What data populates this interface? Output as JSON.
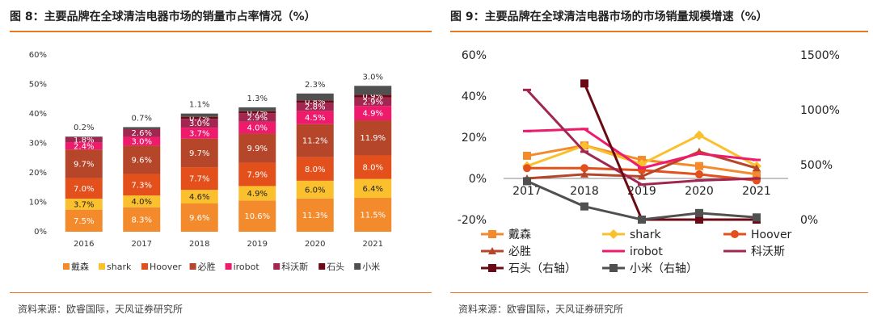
{
  "colors": {
    "accent": "#e87722",
    "戴森": "#f38a2c",
    "shark": "#fbc02d",
    "Hoover": "#e3501c",
    "必胜": "#b5462a",
    "irobot": "#ee1a6c",
    "科沃斯": "#a12650",
    "石头": "#6a0a14",
    "小米": "#505050"
  },
  "left": {
    "title": "图 8：主要品牌在全球清洁电器市场的销量市占率情况（%）",
    "source": "资料来源：欧睿国际，天风证券研究所"
  },
  "right": {
    "title": "图 9：主要品牌在全球清洁电器市场的市场销量规模增速（%）",
    "source": "资料来源：欧睿国际，天风证券研究所"
  },
  "chart_data": [
    {
      "type": "bar",
      "stacked": true,
      "categories": [
        "2016",
        "2017",
        "2018",
        "2019",
        "2020",
        "2021"
      ],
      "ylim": [
        0,
        60
      ],
      "yticks": [
        "0%",
        "10%",
        "20%",
        "30%",
        "40%",
        "50%",
        "60%"
      ],
      "legend_position": "bottom",
      "series": [
        {
          "name": "戴森",
          "values": [
            7.5,
            8.3,
            9.6,
            10.6,
            11.3,
            11.5
          ],
          "labels": [
            "7.5%",
            "8.3%",
            "9.6%",
            "10.6%",
            "11.3%",
            "11.5%"
          ]
        },
        {
          "name": "shark",
          "values": [
            3.7,
            4.0,
            4.6,
            4.9,
            6.0,
            6.4
          ],
          "labels": [
            "3.7%",
            "4.0%",
            "4.6%",
            "4.9%",
            "6.0%",
            "6.4%"
          ]
        },
        {
          "name": "Hoover",
          "values": [
            7.0,
            7.3,
            7.7,
            7.9,
            8.0,
            8.0
          ],
          "labels": [
            "7.0%",
            "7.3%",
            "7.7%",
            "7.9%",
            "8.0%",
            "8.0%"
          ]
        },
        {
          "name": "必胜",
          "values": [
            9.7,
            9.6,
            9.7,
            9.9,
            11.2,
            11.9
          ],
          "labels": [
            "9.7%",
            "9.6%",
            "9.7%",
            "9.9%",
            "11.2%",
            "11.9%"
          ]
        },
        {
          "name": "irobot",
          "values": [
            2.4,
            3.0,
            3.7,
            4.0,
            4.5,
            4.9
          ],
          "labels": [
            "2.4%",
            "3.0%",
            "3.7%",
            "4.0%",
            "4.5%",
            "4.9%"
          ]
        },
        {
          "name": "科沃斯",
          "values": [
            1.8,
            2.6,
            3.0,
            2.9,
            2.8,
            2.9
          ],
          "labels": [
            "1.8%",
            "2.6%",
            "3.0%",
            "2.9%",
            "2.8%",
            "2.9%"
          ]
        },
        {
          "name": "石头",
          "values": [
            0,
            0,
            0.7,
            0.7,
            0.8,
            0.9
          ],
          "labels": [
            "",
            "",
            "0.7%",
            "0.7%",
            "0.8%",
            "0.9%"
          ]
        },
        {
          "name": "小米",
          "values": [
            0.2,
            0.7,
            1.1,
            1.3,
            2.3,
            3.0
          ],
          "labels": [
            "0.2%",
            "0.7%",
            "1.1%",
            "1.3%",
            "2.3%",
            "3.0%"
          ]
        }
      ]
    },
    {
      "type": "line",
      "categories": [
        "2017",
        "2018",
        "2019",
        "2020",
        "2021"
      ],
      "ylim_left": [
        -20,
        60
      ],
      "ylim_right": [
        0,
        1500
      ],
      "yticks_left": [
        "-20%",
        "0%",
        "20%",
        "40%",
        "60%"
      ],
      "yticks_right": [
        "0%",
        "500%",
        "1000%",
        "1500%"
      ],
      "legend_position": "bottom",
      "series": [
        {
          "name": "戴森",
          "axis": "left",
          "marker": "square",
          "values": [
            11,
            16,
            9,
            6,
            2
          ]
        },
        {
          "name": "shark",
          "axis": "left",
          "marker": "diamond",
          "values": [
            6,
            16,
            7,
            21,
            6
          ]
        },
        {
          "name": "Hoover",
          "axis": "left",
          "marker": "circle",
          "values": [
            5,
            5,
            4,
            2,
            -1
          ]
        },
        {
          "name": "必胜",
          "axis": "left",
          "marker": "triangle",
          "values": [
            0,
            2,
            1,
            13,
            5
          ]
        },
        {
          "name": "irobot",
          "axis": "left",
          "marker": "dash",
          "values": [
            23,
            24,
            5,
            12,
            9
          ]
        },
        {
          "name": "科沃斯",
          "axis": "left",
          "marker": "dash",
          "values": [
            43,
            13,
            -3,
            -1,
            0
          ]
        },
        {
          "name": "石头（右轴）",
          "axis": "right",
          "marker": "square",
          "values": [
            null,
            1240,
            0,
            0,
            0
          ]
        },
        {
          "name": "小米（右轴）",
          "axis": "right",
          "marker": "square",
          "values": [
            350,
            120,
            0,
            60,
            20
          ]
        }
      ]
    }
  ]
}
